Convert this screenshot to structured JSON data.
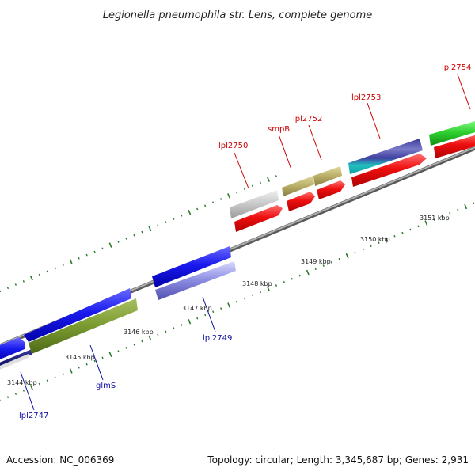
{
  "title": "Legionella pneumophila str. Lens, complete genome",
  "footer": {
    "accession": "Accession: NC_006369",
    "topology": "Topology: circular; Length: 3,345,687 bp; Genes: 2,931"
  },
  "ticks": [
    "3144 kbp",
    "3145 kbp",
    "3146 kbp",
    "3147 kbp",
    "3148 kbp",
    "3149 kbp",
    "3150 kbp",
    "3151 kbp"
  ],
  "genes": {
    "forward": [
      "lpl2750",
      "smpB",
      "lpl2752",
      "lpl2753",
      "lpl2754"
    ],
    "reverse": [
      "lpl2747",
      "glmS",
      "lpl2749"
    ]
  },
  "colors": {
    "forward_label": "#cc0000",
    "reverse_label": "#1010a0",
    "backbone": "#808080",
    "tick": "#2a7a2a"
  }
}
